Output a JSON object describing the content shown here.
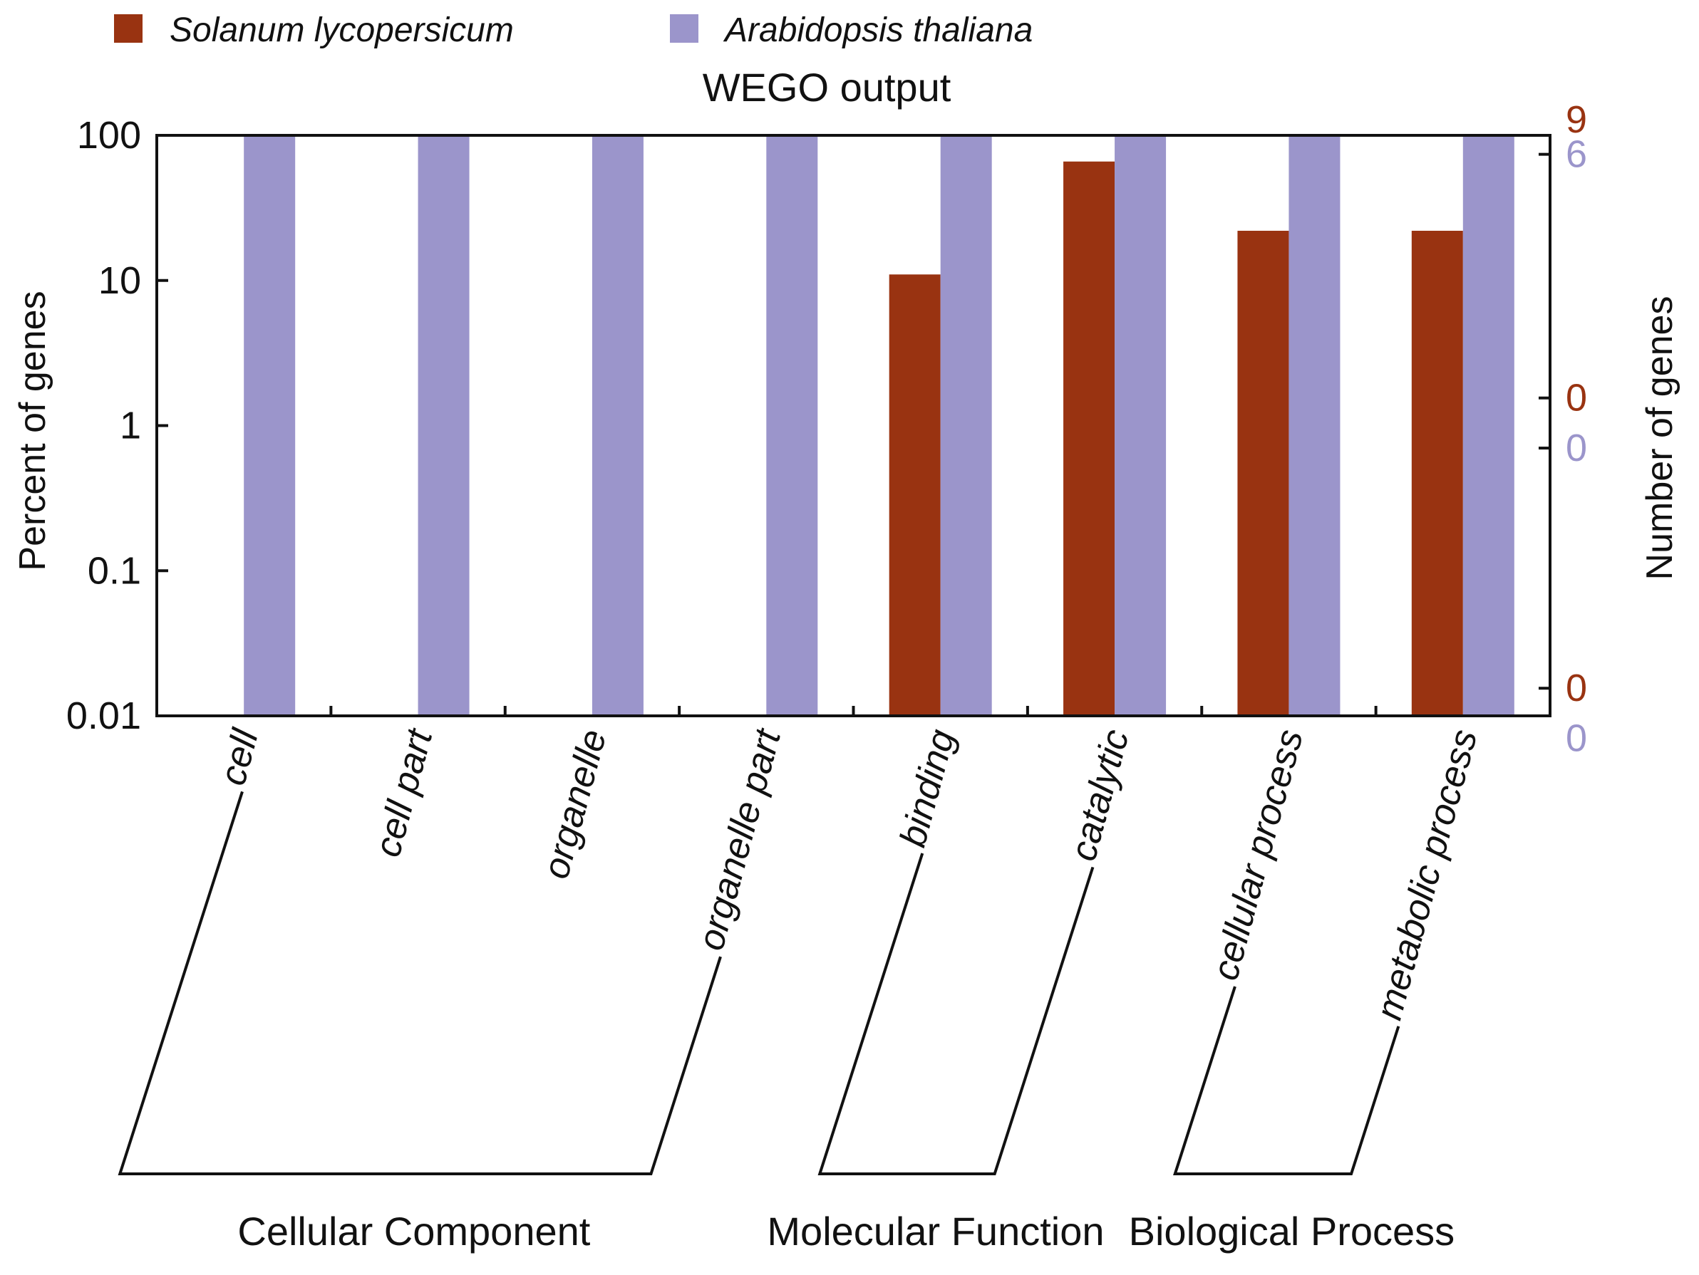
{
  "chart_data": {
    "type": "bar",
    "title": "WEGO output",
    "ylabel_left": "Percent of genes",
    "ylabel_right": "Number of genes",
    "y_scale": "log",
    "ylim": [
      0.01,
      100
    ],
    "y_ticks": [
      {
        "value": 0.01,
        "label": "0.01"
      },
      {
        "value": 0.1,
        "label": "0.1"
      },
      {
        "value": 1,
        "label": "1"
      },
      {
        "value": 10,
        "label": "10"
      },
      {
        "value": 100,
        "label": "100"
      }
    ],
    "right_ticks": [
      {
        "series": 0,
        "label": "9",
        "percent": 128
      },
      {
        "series": 1,
        "label": "6",
        "percent": 74
      },
      {
        "series": 0,
        "label": "0",
        "percent": 1.55
      },
      {
        "series": 1,
        "label": "0",
        "percent": 0.7
      },
      {
        "series": 0,
        "label": "0",
        "percent": 0.0155
      },
      {
        "series": 1,
        "label": "0",
        "percent": 0.007
      }
    ],
    "categories": [
      "cell",
      "cell part",
      "organelle",
      "organelle part",
      "binding",
      "catalytic",
      "cellular process",
      "metabolic process"
    ],
    "series": [
      {
        "name": "Solanum lycopersicum",
        "color": "#993311",
        "values": [
          0,
          0,
          0,
          0,
          11,
          66,
          22,
          22
        ]
      },
      {
        "name": "Arabidopsis thaliana",
        "color": "#9b95cb",
        "values": [
          100,
          100,
          100,
          100,
          100,
          100,
          100,
          100
        ]
      }
    ],
    "groups": [
      {
        "name": "Cellular Component",
        "first": 0,
        "last": 3
      },
      {
        "name": "Molecular Function",
        "first": 4,
        "last": 5
      },
      {
        "name": "Biological Process",
        "first": 6,
        "last": 7
      }
    ]
  }
}
